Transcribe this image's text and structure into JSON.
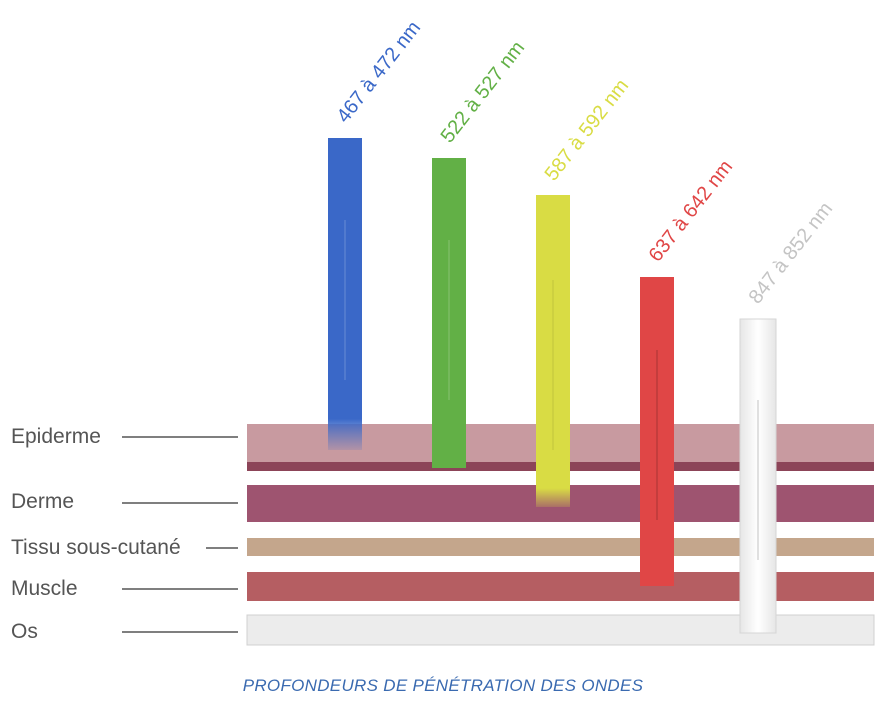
{
  "caption": "PROFONDEURS DE PÉNÉTRATION DES ONDES",
  "caption_color": "#3a6ab0",
  "layers": [
    {
      "id": "epiderme",
      "label": "Epiderme",
      "color": "#c89aa0",
      "accent": "#8c4458"
    },
    {
      "id": "derme",
      "label": "Derme",
      "color": "#9e5470"
    },
    {
      "id": "tissu",
      "label": "Tissu sous-cutané",
      "color": "#c4a68c"
    },
    {
      "id": "muscle",
      "label": "Muscle",
      "color": "#b55e62"
    },
    {
      "id": "os",
      "label": "Os",
      "color": "#ececec"
    }
  ],
  "waves": [
    {
      "id": "blue",
      "label": "467 à 472 nm",
      "color": "#3a68c8",
      "reaches": "Epiderme"
    },
    {
      "id": "green",
      "label": "522 à 527 nm",
      "color": "#62b046",
      "reaches": "Epiderme"
    },
    {
      "id": "yellow",
      "label": "587 à 592 nm",
      "color": "#d9dc44",
      "reaches": "Derme"
    },
    {
      "id": "red",
      "label": "637 à 642 nm",
      "color": "#e04646",
      "reaches": "Muscle"
    },
    {
      "id": "ir",
      "label": "847 à 852 nm",
      "color": "#c4c4c4",
      "reaches": "Os"
    }
  ]
}
